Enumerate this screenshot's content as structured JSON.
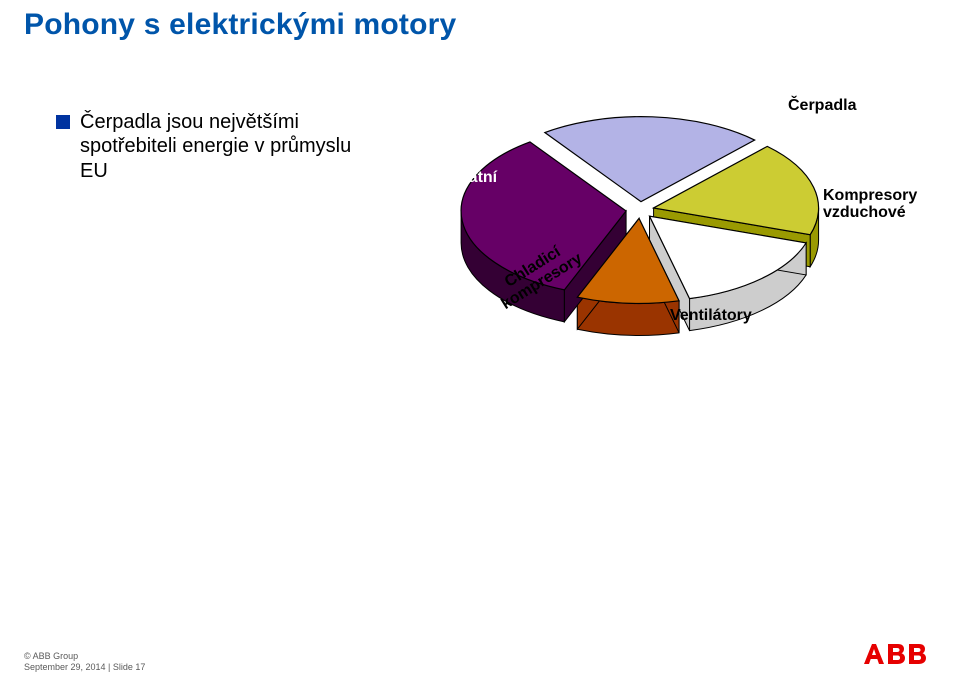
{
  "title": {
    "text": "Pohony s elektrickými motory",
    "color": "#0055aa"
  },
  "bullet": {
    "marker_color": "#0033a0",
    "lines": "Čerpadla jsou největšími spotřebiteli energie v průmyslu EU"
  },
  "chart": {
    "type": "pie-3d-exploded",
    "background_color": "#ffffff",
    "slices": [
      {
        "name": "Čerpadla",
        "label": "Čerpadla",
        "value": 22,
        "color": "#b3b3e6",
        "stroke": "#000000"
      },
      {
        "name": "Kompresory vzduchové",
        "label": "Kompresory\nvzduchové",
        "value": 18,
        "color": "#cccc33",
        "stroke": "#000000"
      },
      {
        "name": "Ventilátory",
        "label": "Ventilátory",
        "value": 16,
        "color": "#ffffff",
        "stroke": "#000000"
      },
      {
        "name": "Chladicí kompresory",
        "label": "Chladicí\nkompresory",
        "value": 10,
        "color": "#cc6600",
        "stroke": "#000000"
      },
      {
        "name": "Ostatní",
        "label": "Ostatní",
        "value": 34,
        "color": "#660066",
        "stroke": "#000000"
      }
    ],
    "label_font_size": 16,
    "label_font_weight": "bold"
  },
  "footer": {
    "line1": "© ABB Group",
    "line2": "September 29, 2014 | Slide 17"
  },
  "logo": {
    "text": "ABB",
    "color": "#e60000"
  }
}
